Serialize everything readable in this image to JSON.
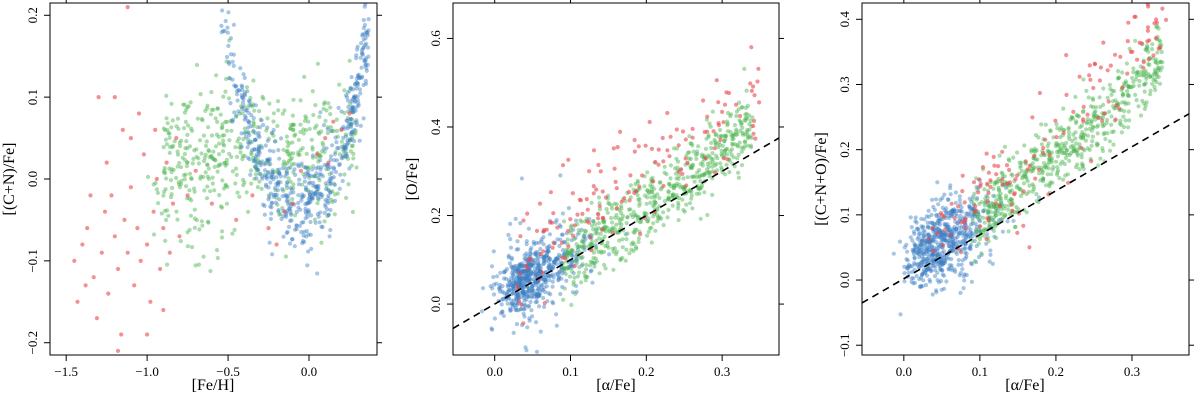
{
  "colors": {
    "blue": "#3b7fc4",
    "green": "#45b14a",
    "red": "#e8474c",
    "frame": "#000000",
    "dashed_line": "#000000"
  },
  "chart_data": [
    {
      "type": "scatter",
      "xlabel": "[Fe/H]",
      "ylabel": "[(C+N)/Fe]",
      "xlim": [
        -1.6,
        0.42
      ],
      "ylim": [
        -0.215,
        0.215
      ],
      "xticks": [
        -1.5,
        -1.0,
        -0.5,
        0.0
      ],
      "xtick_labels": [
        "−1.5",
        "−1.0",
        "−0.5",
        "0.0"
      ],
      "yticks": [
        -0.2,
        -0.1,
        0.0,
        0.1,
        0.2
      ],
      "ytick_labels": [
        "−0.2",
        "−0.1",
        "0.0",
        "0.1",
        "0.2"
      ],
      "grid": false,
      "series": [
        {
          "color_key": "red",
          "points": [
            [
              -1.43,
              -0.15
            ],
            [
              -1.4,
              -0.08
            ],
            [
              -1.37,
              -0.06
            ],
            [
              -1.33,
              -0.12
            ],
            [
              -1.31,
              -0.17
            ],
            [
              -1.28,
              -0.09
            ],
            [
              -1.26,
              -0.04
            ],
            [
              -1.24,
              -0.14
            ],
            [
              -1.22,
              -0.02
            ],
            [
              -1.2,
              -0.07
            ],
            [
              -1.18,
              -0.11
            ],
            [
              -1.16,
              -0.19
            ],
            [
              -1.14,
              -0.05
            ],
            [
              -1.12,
              -0.09
            ],
            [
              -1.1,
              -0.01
            ],
            [
              -1.08,
              -0.13
            ],
            [
              -1.06,
              -0.06
            ],
            [
              -1.04,
              -0.1
            ],
            [
              -1.02,
              0.03
            ],
            [
              -1.0,
              -0.08
            ],
            [
              -0.98,
              -0.15
            ],
            [
              -0.96,
              -0.04
            ],
            [
              -0.94,
              0.0
            ],
            [
              -0.92,
              -0.11
            ],
            [
              -0.9,
              -0.06
            ],
            [
              -0.88,
              0.02
            ],
            [
              -0.86,
              -0.09
            ],
            [
              -0.84,
              -0.03
            ],
            [
              -0.82,
              0.05
            ],
            [
              -0.8,
              -0.07
            ],
            [
              -1.3,
              0.1
            ],
            [
              -1.2,
              0.1
            ],
            [
              -1.15,
              0.06
            ],
            [
              -1.05,
              0.08
            ],
            [
              -0.95,
              0.06
            ],
            [
              -1.35,
              -0.02
            ],
            [
              -1.25,
              0.02
            ],
            [
              -1.1,
              0.05
            ],
            [
              -1.45,
              -0.1
            ],
            [
              -1.38,
              -0.13
            ],
            [
              -1.0,
              -0.19
            ],
            [
              -0.9,
              -0.16
            ],
            [
              -1.18,
              -0.21
            ],
            [
              -1.12,
              0.21
            ],
            [
              -0.75,
              -0.02
            ],
            [
              -0.7,
              0.01
            ],
            [
              -0.6,
              -0.03
            ],
            [
              -0.45,
              -0.05
            ],
            [
              -0.35,
              -0.02
            ],
            [
              -0.25,
              -0.06
            ],
            [
              -0.15,
              -0.04
            ],
            [
              -0.05,
              0.01
            ],
            [
              0.05,
              0.03
            ],
            [
              0.1,
              0.05
            ],
            [
              0.15,
              0.07
            ],
            [
              0.2,
              0.06
            ],
            [
              0.25,
              0.08
            ],
            [
              0.12,
              0.02
            ],
            [
              -0.2,
              -0.08
            ],
            [
              -0.1,
              -0.03
            ]
          ],
          "count": 60
        },
        {
          "color_key": "green",
          "generated": true,
          "count": 520,
          "note_xrange": [
            -1.0,
            0.3
          ],
          "note_center": [
            -0.35,
            0.03
          ]
        },
        {
          "color_key": "blue",
          "generated": true,
          "count": 560,
          "note_xrange": [
            -0.55,
            0.35
          ],
          "note_center": [
            -0.05,
            -0.01
          ]
        }
      ]
    },
    {
      "type": "scatter",
      "xlabel": "[α/Fe]",
      "ylabel": "[O/Fe]",
      "xlim": [
        -0.055,
        0.375
      ],
      "ylim": [
        -0.115,
        0.68
      ],
      "xticks": [
        0.0,
        0.1,
        0.2,
        0.3
      ],
      "xtick_labels": [
        "0.0",
        "0.1",
        "0.2",
        "0.3"
      ],
      "yticks": [
        0.0,
        0.2,
        0.4,
        0.6
      ],
      "ytick_labels": [
        "0.0",
        "0.2",
        "0.4",
        "0.6"
      ],
      "grid": false,
      "reference_line": {
        "style": "dashed",
        "x": [
          -0.055,
          0.375
        ],
        "y": [
          -0.055,
          0.375
        ]
      },
      "series": [
        {
          "color_key": "blue",
          "generated": true,
          "count": 620
        },
        {
          "color_key": "red",
          "generated": true,
          "count": 150
        },
        {
          "color_key": "green",
          "generated": true,
          "count": 600
        }
      ]
    },
    {
      "type": "scatter",
      "xlabel": "[α/Fe]",
      "ylabel": "[(C+N+O)/Fe]",
      "xlim": [
        -0.055,
        0.375
      ],
      "ylim": [
        -0.115,
        0.425
      ],
      "xticks": [
        0.0,
        0.1,
        0.2,
        0.3
      ],
      "xtick_labels": [
        "0.0",
        "0.1",
        "0.2",
        "0.3"
      ],
      "yticks": [
        -0.1,
        0.0,
        0.1,
        0.2,
        0.3,
        0.4
      ],
      "ytick_labels": [
        "−0.1",
        "0.0",
        "0.1",
        "0.2",
        "0.3",
        "0.4"
      ],
      "grid": false,
      "reference_line": {
        "style": "dashed",
        "x": [
          -0.055,
          0.375
        ],
        "y": [
          -0.035,
          0.255
        ]
      },
      "series": [
        {
          "color_key": "blue",
          "generated": true,
          "count": 620
        },
        {
          "color_key": "red",
          "generated": true,
          "count": 150
        },
        {
          "color_key": "green",
          "generated": true,
          "count": 600
        }
      ]
    }
  ]
}
